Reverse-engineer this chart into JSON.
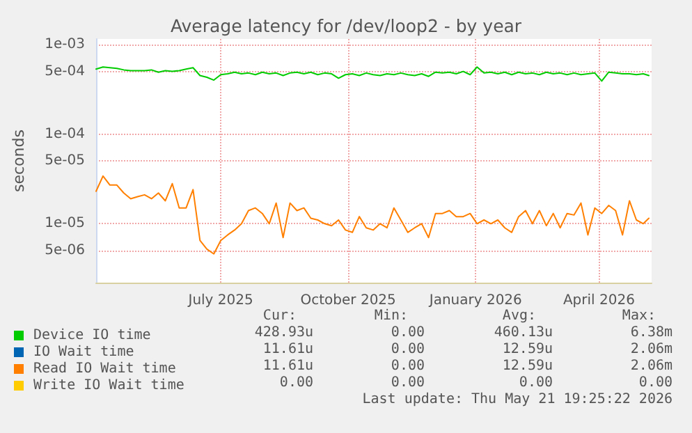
{
  "chart_data": {
    "type": "line",
    "title": "Average latency for /dev/loop2 - by year",
    "ylabel": "seconds",
    "x": [
      "2025-04-17",
      "2025-04-22",
      "2025-04-27",
      "2025-05-02",
      "2025-05-07",
      "2025-05-12",
      "2025-05-17",
      "2025-05-22",
      "2025-05-27",
      "2025-06-01",
      "2025-06-06",
      "2025-06-11",
      "2025-06-16",
      "2025-06-21",
      "2025-06-26",
      "2025-07-01",
      "2025-07-06",
      "2025-07-11",
      "2025-07-16",
      "2025-07-21",
      "2025-07-26",
      "2025-07-31",
      "2025-08-05",
      "2025-08-10",
      "2025-08-15",
      "2025-08-20",
      "2025-08-25",
      "2025-08-30",
      "2025-09-04",
      "2025-09-09",
      "2025-09-14",
      "2025-09-19",
      "2025-09-24",
      "2025-09-29",
      "2025-10-04",
      "2025-10-09",
      "2025-10-14",
      "2025-10-19",
      "2025-10-24",
      "2025-10-29",
      "2025-11-03",
      "2025-11-08",
      "2025-11-13",
      "2025-11-18",
      "2025-11-23",
      "2025-11-28",
      "2025-12-03",
      "2025-12-08",
      "2025-12-13",
      "2025-12-18",
      "2025-12-23",
      "2025-12-28",
      "2026-01-02",
      "2026-01-07",
      "2026-01-12",
      "2026-01-17",
      "2026-01-22",
      "2026-01-27",
      "2026-02-01",
      "2026-02-06",
      "2026-02-11",
      "2026-02-16",
      "2026-02-21",
      "2026-02-26",
      "2026-03-03",
      "2026-03-08",
      "2026-03-13",
      "2026-03-18",
      "2026-03-23",
      "2026-03-28",
      "2026-04-02",
      "2026-04-07",
      "2026-04-12",
      "2026-04-17",
      "2026-04-22",
      "2026-04-27",
      "2026-05-02",
      "2026-05-07",
      "2026-05-12",
      "2026-05-17",
      "2026-05-21"
    ],
    "series": [
      {
        "name": "Device IO time",
        "color": "#00cc00",
        "values": [
          0.00053,
          0.00056,
          0.00055,
          0.00054,
          0.00052,
          0.00051,
          0.00051,
          0.00051,
          0.00052,
          0.00049,
          0.00051,
          0.0005,
          0.00051,
          0.00053,
          0.00055,
          0.00045,
          0.00043,
          0.0004,
          0.00046,
          0.00047,
          0.00049,
          0.00047,
          0.00048,
          0.00046,
          0.00049,
          0.00047,
          0.00048,
          0.00045,
          0.00048,
          0.00049,
          0.00047,
          0.00049,
          0.00046,
          0.00048,
          0.00047,
          0.00042,
          0.00046,
          0.00047,
          0.00045,
          0.00048,
          0.00046,
          0.00045,
          0.00047,
          0.00046,
          0.00048,
          0.00046,
          0.00045,
          0.00047,
          0.00044,
          0.00049,
          0.00048,
          0.00049,
          0.00047,
          0.0005,
          0.00046,
          0.00056,
          0.00048,
          0.00049,
          0.00047,
          0.00049,
          0.00046,
          0.00049,
          0.00047,
          0.00048,
          0.00046,
          0.00049,
          0.00047,
          0.00048,
          0.00046,
          0.00048,
          0.00046,
          0.00047,
          0.00048,
          0.00039,
          0.00049,
          0.00048,
          0.00047,
          0.00047,
          0.00046,
          0.00047,
          0.00045
        ]
      },
      {
        "name": "IO Wait time",
        "color": "#0066b3",
        "values": [
          null,
          null,
          null,
          null,
          null,
          null,
          null,
          null,
          null,
          null,
          null,
          null,
          null,
          null,
          null,
          null,
          null,
          null,
          null,
          null,
          null,
          null,
          null,
          null,
          null,
          null,
          null,
          null,
          null,
          null,
          null,
          null,
          null,
          null,
          null,
          null,
          null,
          null,
          null,
          null,
          null,
          null,
          null,
          null,
          null,
          null,
          null,
          null,
          null,
          null,
          null,
          null,
          null,
          null,
          null,
          null,
          null,
          null,
          null,
          null,
          null,
          null,
          null,
          null,
          null,
          null,
          null,
          null,
          null,
          null,
          null,
          null,
          null,
          null,
          null,
          null,
          null,
          null,
          null,
          null,
          null
        ]
      },
      {
        "name": "Read IO Wait time",
        "color": "#ff8000",
        "values": [
          2.3e-05,
          3.4e-05,
          2.7e-05,
          2.7e-05,
          2.2e-05,
          1.9e-05,
          2e-05,
          2.1e-05,
          1.9e-05,
          2.2e-05,
          1.8e-05,
          2.8e-05,
          1.5e-05,
          1.5e-05,
          2.4e-05,
          6.5e-06,
          5.2e-06,
          4.6e-06,
          6.5e-06,
          7.5e-06,
          8.5e-06,
          1e-05,
          1.4e-05,
          1.5e-05,
          1.3e-05,
          1e-05,
          1.7e-05,
          7e-06,
          1.7e-05,
          1.4e-05,
          1.5e-05,
          1.15e-05,
          1.1e-05,
          1e-05,
          9.5e-06,
          1.1e-05,
          8.5e-06,
          8e-06,
          1.2e-05,
          9e-06,
          8.5e-06,
          1e-05,
          9e-06,
          1.5e-05,
          1.1e-05,
          8e-06,
          9e-06,
          1e-05,
          7e-06,
          1.3e-05,
          1.3e-05,
          1.4e-05,
          1.2e-05,
          1.2e-05,
          1.3e-05,
          1e-05,
          1.1e-05,
          1e-05,
          1.1e-05,
          9e-06,
          8e-06,
          1.2e-05,
          1.4e-05,
          1e-05,
          1.4e-05,
          9.5e-06,
          1.3e-05,
          9e-06,
          1.3e-05,
          1.25e-05,
          1.7e-05,
          7.5e-06,
          1.5e-05,
          1.3e-05,
          1.6e-05,
          1.4e-05,
          7.5e-06,
          1.8e-05,
          1.1e-05,
          1e-05,
          1.15e-05
        ]
      },
      {
        "name": "Write IO Wait time",
        "color": "#ffcc00",
        "values": [
          null,
          null,
          null,
          null,
          null,
          null,
          null,
          null,
          null,
          null,
          null,
          null,
          null,
          null,
          null,
          null,
          null,
          null,
          null,
          null,
          null,
          null,
          null,
          null,
          null,
          null,
          null,
          null,
          null,
          null,
          null,
          null,
          null,
          null,
          null,
          null,
          null,
          null,
          null,
          null,
          null,
          null,
          null,
          null,
          null,
          null,
          null,
          null,
          null,
          null,
          null,
          null,
          null,
          null,
          null,
          null,
          null,
          null,
          null,
          null,
          null,
          null,
          null,
          null,
          null,
          null,
          null,
          null,
          null,
          null,
          null,
          null,
          null,
          null,
          null,
          null,
          null,
          null,
          null,
          null,
          null
        ]
      }
    ],
    "log": "y",
    "xlim": [
      "2025-04-17",
      "2026-05-23"
    ],
    "xticks": [
      {
        "value": "2025-07-16",
        "label": "July 2025"
      },
      {
        "value": "2025-10-16",
        "label": "October 2025"
      },
      {
        "value": "2026-01-16",
        "label": "January 2026"
      },
      {
        "value": "2026-04-15",
        "label": "April 2026"
      }
    ],
    "ylim": [
      2.2e-06,
      0.00115
    ],
    "yticks": [
      {
        "value": 0.001,
        "label": "1e-03"
      },
      {
        "value": 0.0005,
        "label": "5e-04"
      },
      {
        "value": 0.0001,
        "label": "1e-04"
      },
      {
        "value": 5e-05,
        "label": "5e-05"
      },
      {
        "value": 1e-05,
        "label": "1e-05"
      },
      {
        "value": 5e-06,
        "label": "5e-06"
      }
    ],
    "grid": true,
    "legend": "bottom left",
    "marker": "none",
    "line_style": "solid",
    "annotations": [
      "Cur:",
      "Min:",
      "Avg:",
      "Max:",
      "428.93u",
      "0.00",
      "460.13u",
      "6.38m",
      "11.61u",
      "0.00",
      "12.59u",
      "2.06m",
      "11.61u",
      "0.00",
      "12.59u",
      "2.06m",
      "0.00",
      "0.00",
      "0.00",
      "0.00",
      "Last update: Thu May 21 19:25:22 2026"
    ]
  }
}
